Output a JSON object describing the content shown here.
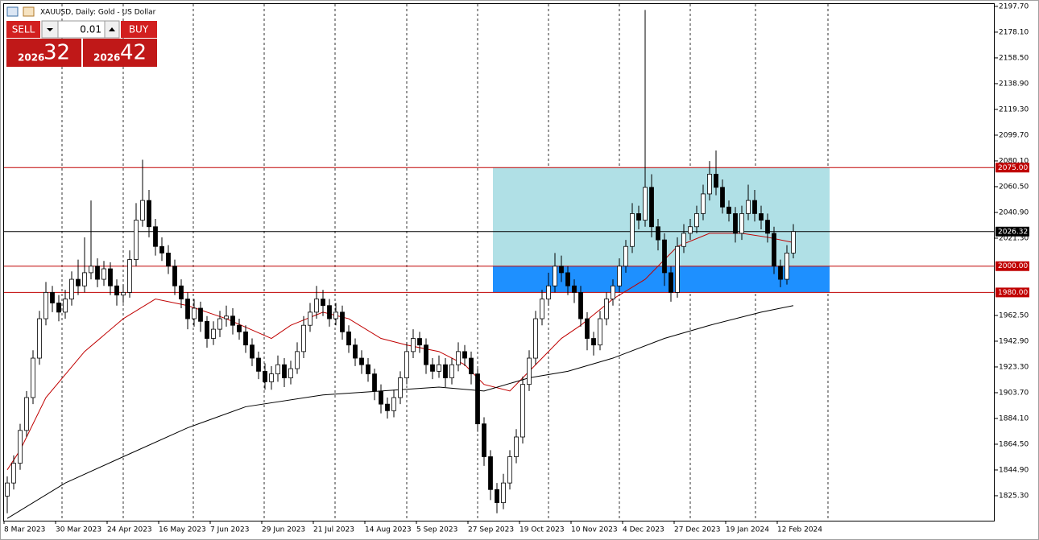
{
  "chart_data": {
    "type": "candlestick",
    "title": "XAUUSD, Daily:  Gold - US Dollar",
    "trade_panel": {
      "sell": "SELL",
      "buy": "BUY",
      "volume": "0.01",
      "bid_big": "2026",
      "bid_small": "32",
      "ask_big": "2026",
      "ask_small": "42"
    },
    "open": [
      1825,
      1835,
      1850,
      1875,
      1900,
      1930,
      1960,
      1980,
      1972,
      1965,
      1975,
      1990,
      1985,
      1995,
      2000,
      1990,
      1998,
      1985,
      1978,
      1980,
      2005,
      2035,
      2050,
      2030,
      2015,
      2010,
      2000,
      1985,
      1975,
      1960,
      1968,
      1958,
      1945,
      1952,
      1960,
      1962,
      1955,
      1950,
      1940,
      1930,
      1920,
      1912,
      1918,
      1925,
      1915,
      1922,
      1935,
      1955,
      1965,
      1975,
      1970,
      1960,
      1965,
      1950,
      1940,
      1930,
      1925,
      1918,
      1905,
      1895,
      1890,
      1900,
      1915,
      1935,
      1945,
      1940,
      1925,
      1920,
      1925,
      1915,
      1925,
      1935,
      1930,
      1918,
      1880,
      1855,
      1830,
      1820,
      1835,
      1855,
      1870,
      1910,
      1930,
      1960,
      1975,
      1985,
      2000,
      1995,
      1985,
      1980,
      1960,
      1945,
      1940,
      1960,
      1975,
      1985,
      2000,
      2015,
      2040,
      2035,
      2060,
      2030,
      2020,
      1995,
      1980,
      2015,
      2025,
      2030,
      2040,
      2055,
      2070,
      2060,
      2045,
      2040,
      2025,
      2040,
      2050,
      2040,
      2035,
      2025,
      2000,
      1990,
      2010
    ],
    "high": [
      1840,
      1856,
      1880,
      1905,
      1936,
      1966,
      1988,
      1985,
      1978,
      1982,
      1996,
      2005,
      2022,
      2050,
      2006,
      2004,
      2003,
      1990,
      1986,
      2012,
      2048,
      2081,
      2058,
      2036,
      2022,
      2016,
      2005,
      1990,
      1980,
      1975,
      1973,
      1962,
      1958,
      1966,
      1970,
      1968,
      1960,
      1955,
      1945,
      1935,
      1926,
      1924,
      1932,
      1930,
      1928,
      1942,
      1962,
      1972,
      1985,
      1982,
      1975,
      1972,
      1970,
      1955,
      1945,
      1936,
      1930,
      1922,
      1910,
      1900,
      1906,
      1920,
      1942,
      1952,
      1950,
      1945,
      1930,
      1932,
      1930,
      1930,
      1942,
      1940,
      1935,
      1922,
      1885,
      1860,
      1835,
      1842,
      1860,
      1876,
      1916,
      1936,
      1966,
      1982,
      1995,
      2010,
      2008,
      2000,
      1990,
      1985,
      1965,
      1950,
      1966,
      1980,
      1990,
      2006,
      2020,
      2048,
      2046,
      2195,
      2070,
      2036,
      2025,
      2000,
      2022,
      2032,
      2036,
      2046,
      2062,
      2080,
      2088,
      2066,
      2050,
      2045,
      2046,
      2062,
      2058,
      2046,
      2040,
      2030,
      2005,
      2016,
      2032
    ],
    "low": [
      1812,
      1830,
      1845,
      1870,
      1895,
      1925,
      1955,
      1965,
      1958,
      1960,
      1970,
      1978,
      1980,
      1990,
      1984,
      1985,
      1978,
      1970,
      1972,
      1976,
      2000,
      2030,
      2022,
      2008,
      2004,
      1994,
      1978,
      1968,
      1952,
      1954,
      1950,
      1938,
      1940,
      1946,
      1954,
      1948,
      1944,
      1934,
      1924,
      1914,
      1906,
      1906,
      1912,
      1908,
      1910,
      1918,
      1930,
      1950,
      1960,
      1962,
      1954,
      1955,
      1944,
      1934,
      1924,
      1918,
      1912,
      1898,
      1888,
      1884,
      1885,
      1895,
      1910,
      1930,
      1934,
      1918,
      1914,
      1915,
      1908,
      1910,
      1920,
      1924,
      1910,
      1874,
      1848,
      1822,
      1812,
      1815,
      1830,
      1850,
      1865,
      1905,
      1925,
      1955,
      1970,
      1980,
      1988,
      1978,
      1972,
      1954,
      1936,
      1932,
      1936,
      1955,
      1970,
      1980,
      1995,
      2010,
      2028,
      2030,
      2022,
      2012,
      1985,
      1973,
      1976,
      2010,
      2020,
      2025,
      2035,
      2050,
      2054,
      2040,
      2034,
      2018,
      2020,
      2035,
      2034,
      2028,
      2018,
      1994,
      1984,
      1986,
      2006
    ],
    "close": [
      1835,
      1850,
      1875,
      1900,
      1930,
      1960,
      1980,
      1972,
      1965,
      1975,
      1990,
      1985,
      1995,
      2000,
      1990,
      1998,
      1985,
      1978,
      1980,
      2005,
      2035,
      2050,
      2030,
      2015,
      2010,
      2000,
      1985,
      1975,
      1960,
      1968,
      1958,
      1945,
      1952,
      1960,
      1962,
      1955,
      1950,
      1940,
      1930,
      1920,
      1912,
      1918,
      1925,
      1915,
      1922,
      1935,
      1955,
      1965,
      1975,
      1970,
      1960,
      1965,
      1950,
      1940,
      1930,
      1925,
      1918,
      1905,
      1895,
      1890,
      1900,
      1915,
      1935,
      1945,
      1940,
      1925,
      1920,
      1925,
      1915,
      1925,
      1935,
      1930,
      1918,
      1880,
      1855,
      1830,
      1820,
      1835,
      1855,
      1870,
      1910,
      1930,
      1960,
      1975,
      1985,
      2000,
      1995,
      1985,
      1980,
      1960,
      1945,
      1940,
      1960,
      1975,
      1985,
      2000,
      2015,
      2040,
      2035,
      2060,
      2030,
      2020,
      1995,
      1980,
      2015,
      2025,
      2030,
      2040,
      2055,
      2070,
      2060,
      2045,
      2040,
      2025,
      2040,
      2050,
      2040,
      2035,
      2025,
      2000,
      1990,
      2010,
      2026.32
    ],
    "series": [
      {
        "color": "#c00000",
        "x": [
          0,
          2,
          6,
          12,
          18,
          23,
          28,
          34,
          41,
          44,
          49,
          53,
          58,
          62,
          67,
          71,
          74,
          78,
          81,
          86,
          89,
          94,
          99,
          104,
          109,
          114,
          118,
          122
        ],
        "values": [
          1845,
          1860,
          1900,
          1935,
          1960,
          1975,
          1970,
          1960,
          1945,
          1955,
          1965,
          1960,
          1945,
          1940,
          1935,
          1925,
          1910,
          1905,
          1920,
          1945,
          1955,
          1975,
          1990,
          2015,
          2025,
          2025,
          2022,
          2018
        ]
      },
      {
        "color": "#000000",
        "x": [
          0,
          9,
          18,
          28,
          37,
          49,
          58,
          67,
          74,
          81,
          87,
          94,
          102,
          109,
          117,
          122
        ],
        "values": [
          1808,
          1835,
          1855,
          1877,
          1893,
          1902,
          1905,
          1908,
          1905,
          1915,
          1920,
          1930,
          1945,
          1955,
          1965,
          1970
        ]
      }
    ],
    "zones": [
      {
        "from": 2000,
        "to": 2075,
        "color": "#b0e0e6"
      },
      {
        "from": 1980,
        "to": 2000,
        "color": "#1e90ff"
      }
    ],
    "levels": [
      {
        "value": 2075,
        "label": "2075.00",
        "color": "#c00000"
      },
      {
        "value": 2000,
        "label": "2000.00",
        "color": "#c00000"
      },
      {
        "value": 1980,
        "label": "1980.00",
        "color": "#c00000"
      }
    ],
    "current": {
      "value": 2026.32,
      "label": "2026.32",
      "color": "#000000"
    },
    "ylim": [
      1806.3,
      2199.5
    ],
    "yticks": [
      {
        "value": 2197.7,
        "label": "2197.70"
      },
      {
        "value": 2178.1,
        "label": "2178.10"
      },
      {
        "value": 2158.5,
        "label": "2158.50"
      },
      {
        "value": 2138.9,
        "label": "2138.90"
      },
      {
        "value": 2119.3,
        "label": "2119.30"
      },
      {
        "value": 2099.7,
        "label": "2099.70"
      },
      {
        "value": 2080.1,
        "label": "2080.10"
      },
      {
        "value": 2060.5,
        "label": "2060.50"
      },
      {
        "value": 2040.9,
        "label": "2040.90"
      },
      {
        "value": 2021.3,
        "label": "2021.30"
      },
      {
        "value": 1962.5,
        "label": "1962.50"
      },
      {
        "value": 1942.9,
        "label": "1942.90"
      },
      {
        "value": 1923.3,
        "label": "1923.30"
      },
      {
        "value": 1903.7,
        "label": "1903.70"
      },
      {
        "value": 1884.1,
        "label": "1884.10"
      },
      {
        "value": 1864.5,
        "label": "1864.50"
      },
      {
        "value": 1844.9,
        "label": "1844.90"
      },
      {
        "value": 1825.3,
        "label": "1825.30"
      }
    ],
    "xticks": [
      {
        "value": 0,
        "label": "8 Mar 2023"
      },
      {
        "value": 8,
        "label": "30 Mar 2023"
      },
      {
        "value": 16,
        "label": "24 Apr 2023"
      },
      {
        "value": 24,
        "label": "16 May 2023"
      },
      {
        "value": 32,
        "label": "7 Jun 2023"
      },
      {
        "value": 40,
        "label": "29 Jun 2023"
      },
      {
        "value": 48,
        "label": "21 Jul 2023"
      },
      {
        "value": 56,
        "label": "14 Aug 2023"
      },
      {
        "value": 64,
        "label": "5 Sep 2023"
      },
      {
        "value": 72,
        "label": "27 Sep 2023"
      },
      {
        "value": 80,
        "label": "19 Oct 2023"
      },
      {
        "value": 88,
        "label": "10 Nov 2023"
      },
      {
        "value": 96,
        "label": "4 Dec 2023"
      },
      {
        "value": 104,
        "label": "27 Dec 2023"
      },
      {
        "value": 112,
        "label": "19 Jan 2024"
      },
      {
        "value": 120,
        "label": "12 Feb 2024"
      }
    ]
  }
}
